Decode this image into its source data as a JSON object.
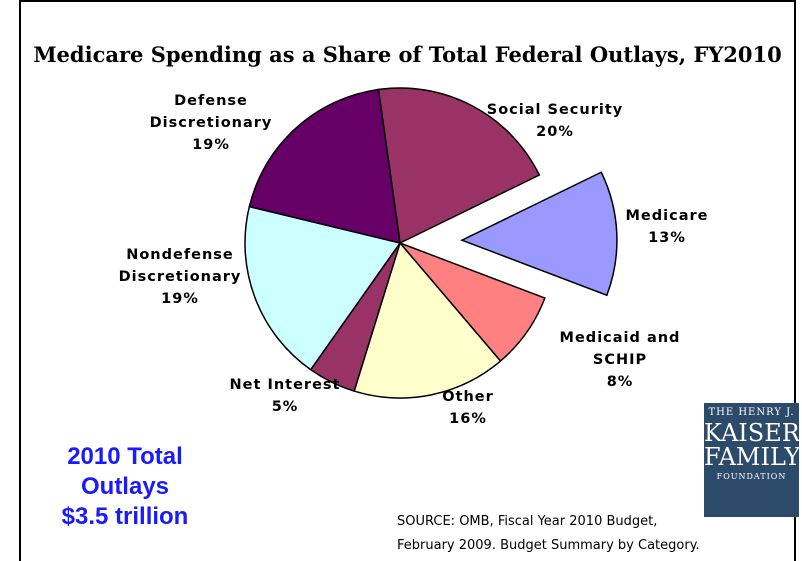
{
  "chart_data": {
    "type": "pie",
    "title": "Medicare Spending as a Share of  Total Federal Outlays, FY2010",
    "slices": [
      {
        "label": "Social Security",
        "value": 20,
        "value_label": "20%",
        "color": "#993366",
        "exploded": false
      },
      {
        "label": "Medicare",
        "value": 13,
        "value_label": "13%",
        "color": "#9999ff",
        "exploded": true
      },
      {
        "label": "Medicaid and SCHIP",
        "value": 8,
        "value_label": "8%",
        "color": "#ff8080",
        "exploded": false
      },
      {
        "label": "Other",
        "value": 16,
        "value_label": "16%",
        "color": "#ffffcc",
        "exploded": false
      },
      {
        "label": "Net Interest",
        "value": 5,
        "value_label": "5%",
        "color": "#993366",
        "exploded": false
      },
      {
        "label": "Nondefense Discretionary",
        "value": 19,
        "value_label": "19%",
        "color": "#ccffff",
        "exploded": false
      },
      {
        "label": "Defense Discretionary",
        "value": 19,
        "value_label": "19%",
        "color": "#660066",
        "exploded": false
      }
    ]
  },
  "labels": {
    "social_security": {
      "line1": "Social Security",
      "pct": "20%"
    },
    "medicare": {
      "line1": "Medicare",
      "pct": "13%"
    },
    "medicaid": {
      "line1": "Medicaid and",
      "line2": "SCHIP",
      "pct": "8%"
    },
    "other": {
      "line1": "Other",
      "pct": "16%"
    },
    "net_interest": {
      "line1": "Net Interest",
      "pct": "5%"
    },
    "nondefense": {
      "line1": "Nondefense",
      "line2": "Discretionary",
      "pct": "19%"
    },
    "defense": {
      "line1": "Defense",
      "line2": "Discretionary",
      "pct": "19%"
    }
  },
  "total": {
    "line1": "2010 Total",
    "line2": "Outlays",
    "line3": "$3.5 trillion"
  },
  "logo": {
    "line1": "THE HENRY J.",
    "line2": "KAISER",
    "line3": "FAMILY",
    "line4": "FOUNDATION"
  },
  "source": {
    "line1": "SOURCE: OMB, Fiscal Year 2010 Budget,",
    "line2": "February 2009.  Budget Summary by Category."
  }
}
